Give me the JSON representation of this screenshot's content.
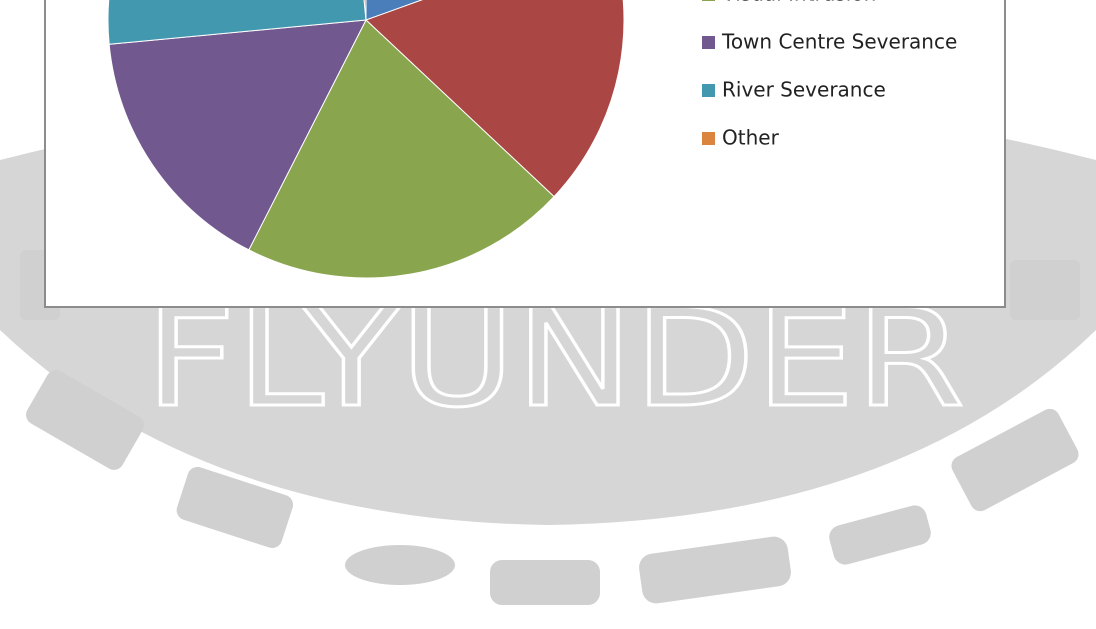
{
  "watermark": "FLYUNDER",
  "chart_data": {
    "type": "pie",
    "series": [
      {
        "name": null,
        "color": "#4a7ebb",
        "values": [
          19.5
        ]
      },
      {
        "name": null,
        "color": "#aa4644",
        "values": [
          17.5
        ]
      },
      {
        "name": "Visual Intrusion",
        "color": "#89a54e",
        "values": [
          20.5
        ]
      },
      {
        "name": "Town Centre Severance",
        "color": "#71588f",
        "values": [
          16
        ]
      },
      {
        "name": "River Severance",
        "color": "#4298af",
        "values": [
          25
        ]
      },
      {
        "name": "Other",
        "color": "#db843d",
        "values": [
          1.5
        ]
      }
    ]
  }
}
